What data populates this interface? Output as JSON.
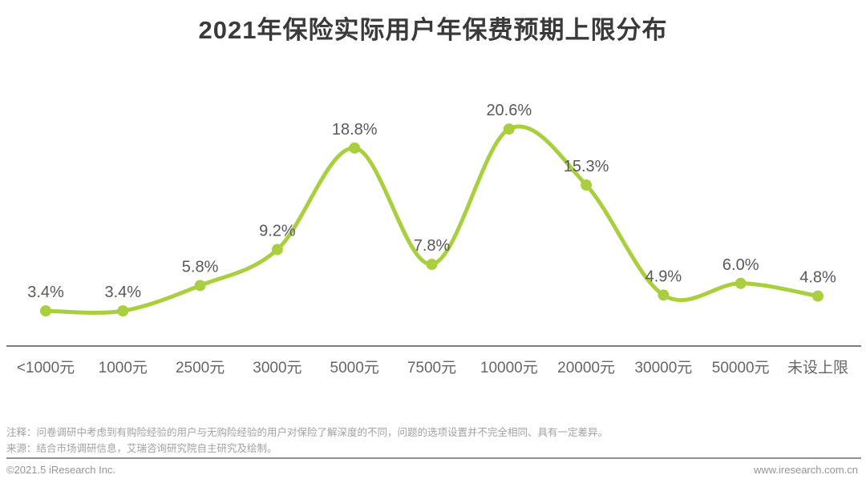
{
  "chart_data": {
    "type": "line",
    "title": "2021年保险实际用户年保费预期上限分布",
    "categories": [
      "<1000元",
      "1000元",
      "2500元",
      "3000元",
      "5000元",
      "7500元",
      "10000元",
      "20000元",
      "30000元",
      "50000元",
      "未设上限"
    ],
    "values": [
      3.4,
      3.4,
      5.8,
      9.2,
      18.8,
      7.8,
      20.6,
      15.3,
      4.9,
      6.0,
      4.8
    ],
    "labels": [
      "3.4%",
      "3.4%",
      "5.8%",
      "9.2%",
      "18.8%",
      "7.8%",
      "20.6%",
      "15.3%",
      "4.9%",
      "6.0%",
      "4.8%"
    ],
    "ylim": [
      0,
      24
    ],
    "grid": "off",
    "legend": "none",
    "line_color": "#a9cf3e",
    "marker_color": "#a9cf3e",
    "label_color": "#595959",
    "axis_color": "#7d7d7d"
  },
  "notes": {
    "note_line": "注释：问卷调研中考虑到有购险经验的用户与无购险经验的用户对保险了解深度的不同，问题的选项设置并不完全相同、具有一定差异。",
    "source_line": "来源：结合市场调研信息，艾瑞咨询研究院自主研究及绘制。"
  },
  "footer": {
    "copyright": "©2021.5 iResearch Inc.",
    "website": "www.iresearch.com.cn"
  }
}
